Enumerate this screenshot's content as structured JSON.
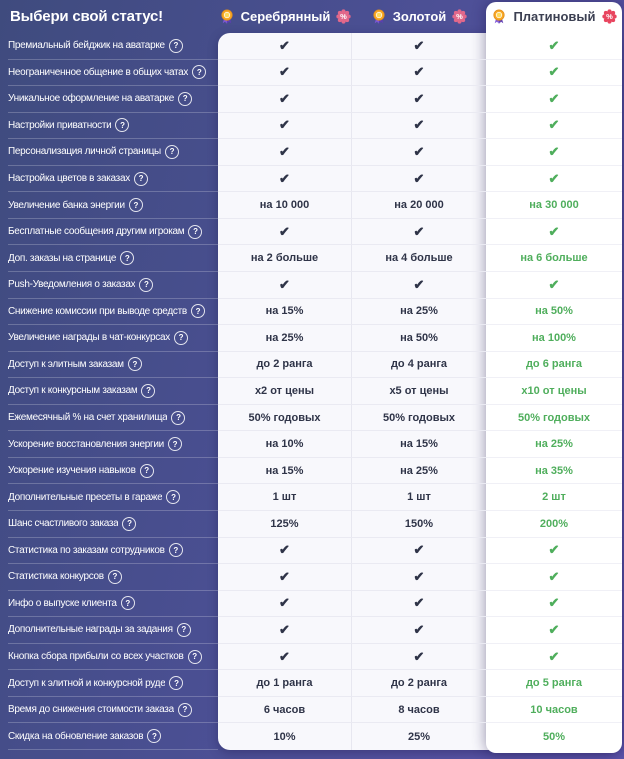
{
  "title": "Выбери свой статус!",
  "help_icon": "?",
  "check_glyph": "✔",
  "colors": {
    "background_top": "#3f4b7e",
    "background_bottom": "#5d54ab",
    "value_dark": "#2f3448",
    "value_green": "#4fae5c",
    "silver_gold_badge": "#e2688b",
    "platinum_badge": "#e8455f",
    "medal_gold": "#f9a825",
    "medal_ribbon": "#7e57d8"
  },
  "columns": [
    {
      "label": "Серебрянный",
      "badge": "%",
      "badge_color": "#e2688b",
      "highlight": false
    },
    {
      "label": "Золотой",
      "badge": "%",
      "badge_color": "#e2688b",
      "highlight": false
    },
    {
      "label": "Платиновый",
      "badge": "%",
      "badge_color": "#e8455f",
      "highlight": true
    }
  ],
  "features": [
    {
      "label": "Премиальный бейджик на аватарке",
      "values": [
        "✔",
        "✔",
        "✔"
      ]
    },
    {
      "label": "Неограниченное общение в общих чатах",
      "values": [
        "✔",
        "✔",
        "✔"
      ]
    },
    {
      "label": "Уникальное оформление на аватарке",
      "values": [
        "✔",
        "✔",
        "✔"
      ]
    },
    {
      "label": "Настройки приватности",
      "values": [
        "✔",
        "✔",
        "✔"
      ]
    },
    {
      "label": "Персонализация личной страницы",
      "values": [
        "✔",
        "✔",
        "✔"
      ]
    },
    {
      "label": "Настройка цветов в заказах",
      "values": [
        "✔",
        "✔",
        "✔"
      ]
    },
    {
      "label": "Увеличение банка энергии",
      "values": [
        "на 10 000",
        "на 20 000",
        "на 30 000"
      ]
    },
    {
      "label": "Бесплатные сообщения другим игрокам",
      "values": [
        "✔",
        "✔",
        "✔"
      ]
    },
    {
      "label": "Доп. заказы на странице",
      "values": [
        "на 2 больше",
        "на 4 больше",
        "на 6 больше"
      ]
    },
    {
      "label": "Push-Уведомления о заказах",
      "values": [
        "✔",
        "✔",
        "✔"
      ]
    },
    {
      "label": "Снижение комиссии при выводе средств",
      "values": [
        "на 15%",
        "на 25%",
        "на 50%"
      ]
    },
    {
      "label": "Увеличение награды в чат-конкурсах",
      "values": [
        "на 25%",
        "на 50%",
        "на 100%"
      ]
    },
    {
      "label": "Доступ к элитным заказам",
      "values": [
        "до 2 ранга",
        "до 4 ранга",
        "до 6 ранга"
      ]
    },
    {
      "label": "Доступ к конкурсным заказам",
      "values": [
        "x2 от цены",
        "x5 от цены",
        "x10 от цены"
      ]
    },
    {
      "label": "Ежемесячный % на счет хранилища",
      "values": [
        "50% годовых",
        "50% годовых",
        "50% годовых"
      ]
    },
    {
      "label": "Ускорение восстановления энергии",
      "values": [
        "на 10%",
        "на 15%",
        "на 25%"
      ]
    },
    {
      "label": "Ускорение изучения навыков",
      "values": [
        "на 15%",
        "на 25%",
        "на 35%"
      ]
    },
    {
      "label": "Дополнительные пресеты в гараже",
      "values": [
        "1 шт",
        "1 шт",
        "2 шт"
      ]
    },
    {
      "label": "Шанс счастливого заказа",
      "values": [
        "125%",
        "150%",
        "200%"
      ]
    },
    {
      "label": "Статистика по заказам сотрудников",
      "values": [
        "✔",
        "✔",
        "✔"
      ]
    },
    {
      "label": "Статистика конкурсов",
      "values": [
        "✔",
        "✔",
        "✔"
      ]
    },
    {
      "label": "Инфо о выпуске клиента",
      "values": [
        "✔",
        "✔",
        "✔"
      ]
    },
    {
      "label": "Дополнительные награды за задания",
      "values": [
        "✔",
        "✔",
        "✔"
      ]
    },
    {
      "label": "Кнопка сбора прибыли со всех участков",
      "values": [
        "✔",
        "✔",
        "✔"
      ]
    },
    {
      "label": "Доступ к элитной и конкурсной руде",
      "values": [
        "до 1 ранга",
        "до 2 ранга",
        "до 5 ранга"
      ]
    },
    {
      "label": "Время до снижения стоимости заказа",
      "values": [
        "6 часов",
        "8 часов",
        "10 часов"
      ]
    },
    {
      "label": "Скидка на обновление заказов",
      "values": [
        "10%",
        "25%",
        "50%"
      ]
    }
  ]
}
